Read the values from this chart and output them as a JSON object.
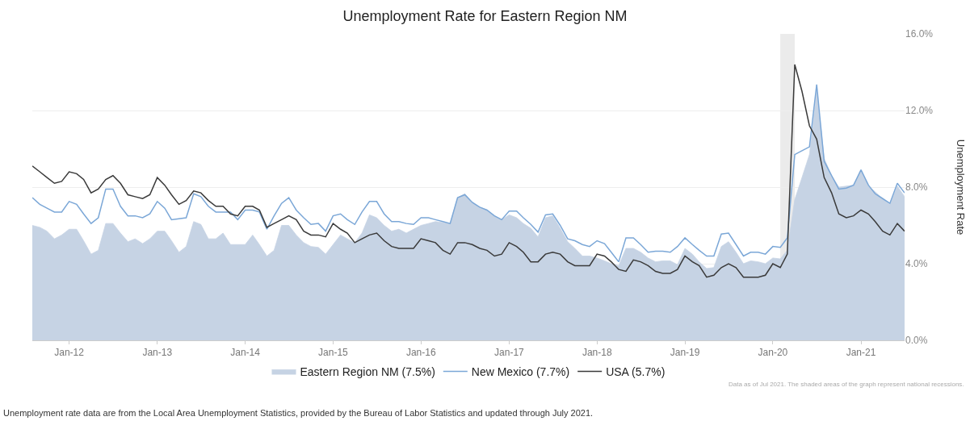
{
  "chart_data": {
    "type": "line",
    "title": "Unemployment Rate for Eastern Region NM",
    "ylabel": "Unemployment Rate",
    "x": [
      "2011-08",
      "2011-09",
      "2011-10",
      "2011-11",
      "2011-12",
      "2012-01",
      "2012-02",
      "2012-03",
      "2012-04",
      "2012-05",
      "2012-06",
      "2012-07",
      "2012-08",
      "2012-09",
      "2012-10",
      "2012-11",
      "2012-12",
      "2013-01",
      "2013-02",
      "2013-03",
      "2013-04",
      "2013-05",
      "2013-06",
      "2013-07",
      "2013-08",
      "2013-09",
      "2013-10",
      "2013-11",
      "2013-12",
      "2014-01",
      "2014-02",
      "2014-03",
      "2014-04",
      "2014-05",
      "2014-06",
      "2014-07",
      "2014-08",
      "2014-09",
      "2014-10",
      "2014-11",
      "2014-12",
      "2015-01",
      "2015-02",
      "2015-03",
      "2015-04",
      "2015-05",
      "2015-06",
      "2015-07",
      "2015-08",
      "2015-09",
      "2015-10",
      "2015-11",
      "2015-12",
      "2016-01",
      "2016-02",
      "2016-03",
      "2016-04",
      "2016-05",
      "2016-06",
      "2016-07",
      "2016-08",
      "2016-09",
      "2016-10",
      "2016-11",
      "2016-12",
      "2017-01",
      "2017-02",
      "2017-03",
      "2017-04",
      "2017-05",
      "2017-06",
      "2017-07",
      "2017-08",
      "2017-09",
      "2017-10",
      "2017-11",
      "2017-12",
      "2018-01",
      "2018-02",
      "2018-03",
      "2018-04",
      "2018-05",
      "2018-06",
      "2018-07",
      "2018-08",
      "2018-09",
      "2018-10",
      "2018-11",
      "2018-12",
      "2019-01",
      "2019-02",
      "2019-03",
      "2019-04",
      "2019-05",
      "2019-06",
      "2019-07",
      "2019-08",
      "2019-09",
      "2019-10",
      "2019-11",
      "2019-12",
      "2020-01",
      "2020-02",
      "2020-03",
      "2020-04",
      "2020-05",
      "2020-06",
      "2020-07",
      "2020-08",
      "2020-09",
      "2020-10",
      "2020-11",
      "2020-12",
      "2021-01",
      "2021-02",
      "2021-03",
      "2021-04",
      "2021-05",
      "2021-06",
      "2021-07"
    ],
    "series": [
      {
        "name": "Eastern Region NM (7.5%)",
        "type": "area",
        "color": "#c6d3e4",
        "values": [
          6.0,
          5.9,
          5.7,
          5.3,
          5.5,
          5.8,
          5.8,
          5.2,
          4.5,
          4.7,
          6.1,
          6.1,
          5.6,
          5.15,
          5.3,
          5.05,
          5.3,
          5.7,
          5.7,
          5.2,
          4.6,
          4.9,
          6.2,
          6.05,
          5.3,
          5.3,
          5.6,
          5.0,
          5.0,
          5.0,
          5.5,
          5.0,
          4.4,
          4.7,
          6.0,
          6.0,
          5.5,
          5.1,
          4.9,
          4.85,
          4.5,
          5.0,
          5.5,
          5.3,
          5.1,
          5.6,
          6.55,
          6.4,
          6.0,
          5.7,
          5.8,
          5.6,
          5.8,
          6.0,
          6.1,
          6.2,
          6.15,
          6.1,
          7.45,
          7.65,
          7.2,
          6.95,
          6.8,
          6.5,
          6.3,
          6.55,
          6.4,
          6.1,
          5.85,
          5.4,
          6.4,
          6.5,
          5.85,
          5.15,
          4.8,
          4.4,
          4.4,
          4.3,
          4.15,
          4.0,
          3.9,
          4.8,
          4.8,
          4.6,
          4.3,
          4.1,
          4.15,
          4.15,
          3.95,
          4.8,
          4.5,
          4.1,
          3.75,
          3.8,
          4.9,
          5.15,
          4.6,
          4.0,
          4.15,
          4.1,
          4.0,
          4.3,
          4.25,
          4.7,
          7.35,
          8.5,
          9.7,
          13.0,
          9.5,
          8.6,
          8.0,
          8.05,
          8.1,
          8.85,
          8.05,
          7.75,
          7.4,
          7.1,
          8.05,
          7.5
        ]
      },
      {
        "name": "New Mexico (7.7%)",
        "color": "#7ba7d7",
        "values": [
          7.45,
          7.1,
          6.9,
          6.7,
          6.7,
          7.25,
          7.1,
          6.6,
          6.1,
          6.4,
          7.9,
          7.9,
          7.0,
          6.5,
          6.5,
          6.4,
          6.6,
          7.25,
          6.9,
          6.3,
          6.35,
          6.4,
          7.65,
          7.5,
          7.0,
          6.7,
          6.7,
          6.7,
          6.3,
          6.8,
          6.8,
          6.7,
          5.8,
          6.5,
          7.15,
          7.45,
          6.8,
          6.4,
          6.05,
          6.1,
          5.7,
          6.5,
          6.6,
          6.3,
          6.05,
          6.7,
          7.25,
          7.25,
          6.6,
          6.2,
          6.2,
          6.1,
          6.05,
          6.4,
          6.4,
          6.3,
          6.2,
          6.1,
          7.45,
          7.6,
          7.2,
          6.95,
          6.8,
          6.5,
          6.3,
          6.75,
          6.75,
          6.4,
          6.05,
          5.65,
          6.55,
          6.6,
          6.0,
          5.3,
          5.2,
          5.0,
          4.9,
          5.2,
          5.05,
          4.6,
          4.1,
          5.35,
          5.35,
          5.0,
          4.6,
          4.65,
          4.65,
          4.6,
          4.9,
          5.35,
          5.0,
          4.7,
          4.4,
          4.4,
          5.55,
          5.6,
          5.0,
          4.4,
          4.6,
          4.6,
          4.5,
          4.9,
          4.85,
          5.35,
          9.7,
          9.9,
          10.1,
          13.35,
          9.35,
          8.6,
          7.9,
          7.95,
          8.1,
          8.9,
          8.1,
          7.65,
          7.4,
          7.15,
          8.2,
          7.7
        ]
      },
      {
        "name": "USA (5.7%)",
        "color": "#3a3a3a",
        "values": [
          9.1,
          8.8,
          8.5,
          8.2,
          8.3,
          8.8,
          8.7,
          8.4,
          7.7,
          7.9,
          8.4,
          8.6,
          8.2,
          7.6,
          7.5,
          7.4,
          7.6,
          8.5,
          8.1,
          7.6,
          7.1,
          7.3,
          7.8,
          7.7,
          7.3,
          7.0,
          7.0,
          6.6,
          6.5,
          7.0,
          7.0,
          6.8,
          5.9,
          6.1,
          6.3,
          6.5,
          6.3,
          5.7,
          5.5,
          5.5,
          5.4,
          6.1,
          5.8,
          5.6,
          5.1,
          5.3,
          5.5,
          5.6,
          5.2,
          4.9,
          4.8,
          4.8,
          4.8,
          5.3,
          5.2,
          5.1,
          4.7,
          4.5,
          5.1,
          5.1,
          5.0,
          4.8,
          4.7,
          4.4,
          4.5,
          5.1,
          4.9,
          4.6,
          4.1,
          4.1,
          4.5,
          4.6,
          4.5,
          4.1,
          3.9,
          3.9,
          3.9,
          4.5,
          4.4,
          4.1,
          3.7,
          3.6,
          4.2,
          4.1,
          3.9,
          3.6,
          3.5,
          3.5,
          3.7,
          4.4,
          4.1,
          3.9,
          3.3,
          3.4,
          3.8,
          4.0,
          3.8,
          3.3,
          3.3,
          3.3,
          3.4,
          4.0,
          3.8,
          4.5,
          14.4,
          13.0,
          11.2,
          10.5,
          8.5,
          7.7,
          6.6,
          6.4,
          6.5,
          6.8,
          6.6,
          6.2,
          5.7,
          5.5,
          6.1,
          5.7
        ]
      }
    ],
    "xlim": [
      "2011-08",
      "2021-07"
    ],
    "xticks": [
      {
        "value": "2012-01",
        "label": "Jan-12"
      },
      {
        "value": "2013-01",
        "label": "Jan-13"
      },
      {
        "value": "2014-01",
        "label": "Jan-14"
      },
      {
        "value": "2015-01",
        "label": "Jan-15"
      },
      {
        "value": "2016-01",
        "label": "Jan-16"
      },
      {
        "value": "2017-01",
        "label": "Jan-17"
      },
      {
        "value": "2018-01",
        "label": "Jan-18"
      },
      {
        "value": "2019-01",
        "label": "Jan-19"
      },
      {
        "value": "2020-01",
        "label": "Jan-20"
      },
      {
        "value": "2021-01",
        "label": "Jan-21"
      }
    ],
    "ylim": [
      0,
      16
    ],
    "yticks": [
      {
        "value": 0,
        "label": "0.0%"
      },
      {
        "value": 4,
        "label": "4.0%"
      },
      {
        "value": 8,
        "label": "8.0%"
      },
      {
        "value": 12,
        "label": "12.0%"
      },
      {
        "value": 16,
        "label": "16.0%"
      }
    ],
    "bands": [
      {
        "axis": "x",
        "from": "2020-02",
        "to": "2020-04",
        "color": "#ebebeb"
      }
    ],
    "grid": "y",
    "legend": "bottom",
    "marker": "none",
    "line_style": "solid",
    "annotations": [
      "Data as of Jul 2021. The shaded areas of the graph represent national recessions.",
      "Unemployment rate data are from the Local Area Unemployment Statistics, provided by the Bureau of Labor Statistics and updated through July 2021."
    ]
  }
}
